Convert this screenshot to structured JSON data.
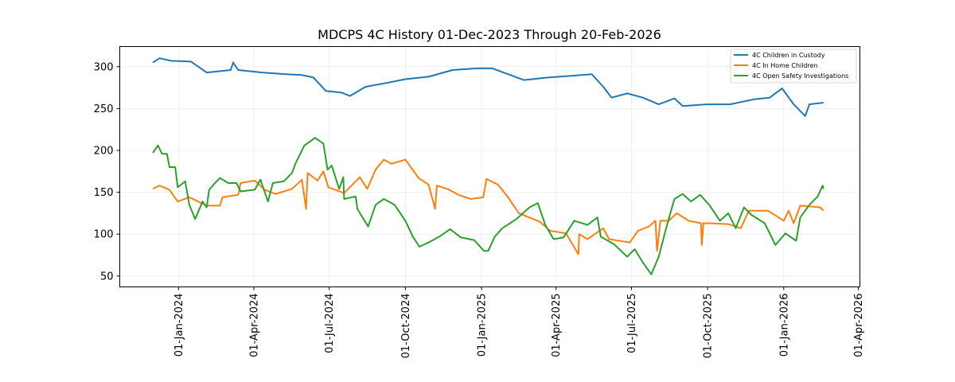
{
  "chart_data": {
    "type": "line",
    "title": "MDCPS 4C History 01-Dec-2023 Through 20-Feb-2026",
    "xlabel": "",
    "ylabel": "",
    "x_unit": "days since 01-Dec-2023",
    "xlim": [
      -40,
      854
    ],
    "ylim": [
      37,
      324
    ],
    "grid": true,
    "legend_position": "top-right",
    "y_ticks": [
      50,
      100,
      150,
      200,
      250,
      300
    ],
    "x_ticks": [
      {
        "day": 31,
        "label": "01-Jan-2024"
      },
      {
        "day": 122,
        "label": "01-Apr-2024"
      },
      {
        "day": 213,
        "label": "01-Jul-2024"
      },
      {
        "day": 305,
        "label": "01-Oct-2024"
      },
      {
        "day": 397,
        "label": "01-Jan-2025"
      },
      {
        "day": 487,
        "label": "01-Apr-2025"
      },
      {
        "day": 578,
        "label": "01-Jul-2025"
      },
      {
        "day": 670,
        "label": "01-Oct-2025"
      },
      {
        "day": 762,
        "label": "01-Jan-2026"
      },
      {
        "day": 852,
        "label": "01-Apr-2026"
      }
    ],
    "series": [
      {
        "name": "4C Children in Custody",
        "color": "#1f77b4",
        "x": [
          0,
          8,
          22,
          46,
          65,
          94,
          97,
          103,
          132,
          161,
          180,
          194,
          209,
          228,
          238,
          257,
          285,
          305,
          333,
          362,
          391,
          410,
          429,
          448,
          477,
          506,
          530,
          544,
          554,
          573,
          592,
          611,
          630,
          640,
          669,
          697,
          726,
          745,
          760,
          774,
          788,
          793,
          810
        ],
        "y": [
          305,
          310,
          307,
          306,
          293,
          296,
          305,
          296,
          293,
          291,
          290,
          287,
          271,
          269,
          265,
          276,
          281,
          285,
          288,
          296,
          298,
          298,
          291,
          284,
          287,
          289,
          291,
          276,
          263,
          268,
          263,
          255,
          262,
          253,
          255,
          255,
          261,
          263,
          274,
          255,
          241,
          255,
          257
        ]
      },
      {
        "name": "4C In Home Children",
        "color": "#ff7f0e",
        "x": [
          0,
          8,
          20,
          30,
          44,
          65,
          81,
          84,
          103,
          106,
          123,
          135,
          148,
          168,
          180,
          185,
          187,
          199,
          206,
          212,
          231,
          250,
          259,
          269,
          279,
          288,
          305,
          321,
          333,
          341,
          343,
          356,
          369,
          384,
          399,
          403,
          417,
          429,
          442,
          467,
          480,
          499,
          514,
          515,
          525,
          544,
          551,
          576,
          586,
          599,
          607,
          609,
          613,
          623,
          633,
          647,
          662,
          663,
          665,
          672,
          695,
          710,
          720,
          743,
          762,
          768,
          774,
          782,
          806,
          810
        ],
        "y": [
          154,
          158,
          153,
          139,
          144,
          134,
          134,
          144,
          147,
          161,
          164,
          153,
          148,
          154,
          165,
          130,
          173,
          164,
          175,
          156,
          149,
          168,
          154,
          177,
          189,
          184,
          189,
          167,
          159,
          130,
          158,
          154,
          147,
          142,
          144,
          166,
          159,
          144,
          125,
          115,
          104,
          101,
          76,
          100,
          94,
          107,
          94,
          90,
          104,
          109,
          116,
          80,
          116,
          116,
          125,
          116,
          113,
          87,
          113,
          113,
          112,
          107,
          128,
          128,
          116,
          128,
          113,
          134,
          132,
          128
        ]
      },
      {
        "name": "4C Open Safety Investigations",
        "color": "#2ca02c",
        "x": [
          0,
          6,
          11,
          17,
          20,
          27,
          30,
          39,
          44,
          51,
          60,
          65,
          68,
          75,
          81,
          91,
          101,
          106,
          123,
          130,
          139,
          145,
          158,
          168,
          173,
          183,
          196,
          206,
          211,
          216,
          225,
          230,
          231,
          245,
          247,
          260,
          269,
          279,
          292,
          305,
          314,
          322,
          333,
          346,
          359,
          372,
          388,
          400,
          405,
          413,
          422,
          439,
          455,
          465,
          474,
          484,
          496,
          509,
          525,
          537,
          541,
          557,
          573,
          582,
          592,
          602,
          611,
          621,
          630,
          640,
          650,
          661,
          672,
          685,
          695,
          704,
          714,
          723,
          739,
          752,
          764,
          777,
          782,
          793,
          803,
          809,
          810
        ],
        "y": [
          197,
          206,
          196,
          196,
          180,
          180,
          156,
          163,
          135,
          118,
          139,
          132,
          153,
          161,
          167,
          161,
          161,
          151,
          153,
          165,
          139,
          161,
          163,
          173,
          186,
          206,
          215,
          208,
          177,
          182,
          154,
          168,
          142,
          145,
          130,
          109,
          135,
          142,
          135,
          116,
          97,
          85,
          90,
          97,
          106,
          96,
          93,
          80,
          80,
          97,
          107,
          118,
          132,
          137,
          111,
          94,
          96,
          116,
          111,
          120,
          97,
          88,
          73,
          82,
          66,
          52,
          73,
          111,
          142,
          148,
          139,
          147,
          135,
          116,
          125,
          107,
          132,
          123,
          113,
          87,
          101,
          92,
          120,
          135,
          145,
          158,
          154
        ]
      }
    ]
  }
}
